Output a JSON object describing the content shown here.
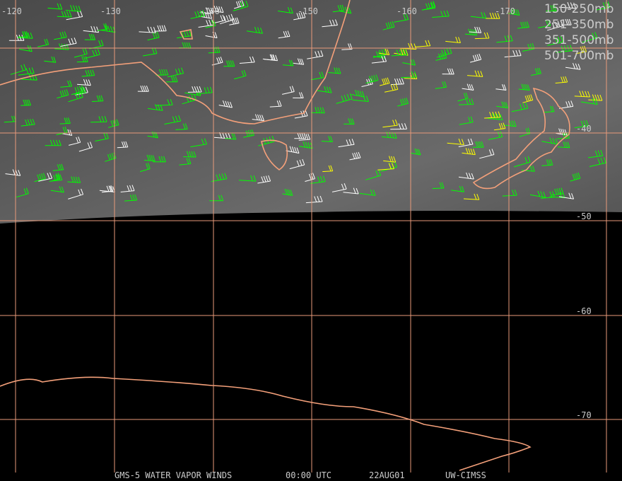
{
  "legend": {
    "entries": [
      {
        "label": "150-250mb",
        "color": "#00ffff"
      },
      {
        "label": "251-350mb",
        "color": "#ffff00"
      },
      {
        "label": "351-500mb",
        "color": "#00ff00"
      },
      {
        "label": "501-700mb",
        "color": "#ffffff"
      }
    ]
  },
  "longitude_labels": [
    "-120",
    "-130",
    "-140",
    "-150",
    "-160",
    "-170"
  ],
  "latitude_labels": [
    "-40",
    "-50",
    "-60",
    "-70"
  ],
  "footer": {
    "product": "GMS-5 WATER VAPOR WINDS",
    "time": "00:00 UTC",
    "date": "22AUG01",
    "source": "UW-CIMSS"
  }
}
